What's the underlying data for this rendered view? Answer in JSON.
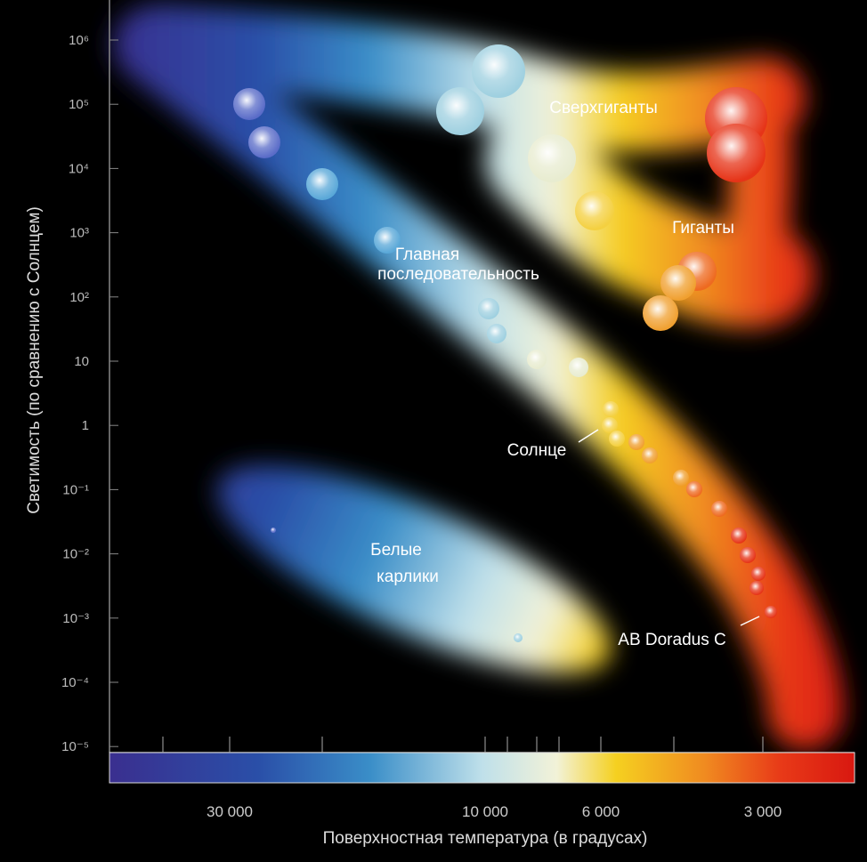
{
  "y_axis": {
    "label": "Светимость (по сравнению с Солнцем)",
    "ticks": [
      "10⁶",
      "10⁵",
      "10⁴",
      "10³",
      "10²",
      "10",
      "1",
      "10⁻¹",
      "10⁻²",
      "10⁻³",
      "10⁻⁴",
      "10⁻⁵"
    ]
  },
  "x_axis": {
    "label": "Поверхностная температура (в градусах)",
    "ticks": [
      "30 000",
      "10 000",
      "6 000",
      "3 000"
    ]
  },
  "regions": [
    "Сверхгиганты",
    "Гиганты",
    "Главная",
    "последовательность",
    "Белые",
    "карлики"
  ],
  "annotations": [
    "Солнце",
    "AB Doradus C"
  ]
}
